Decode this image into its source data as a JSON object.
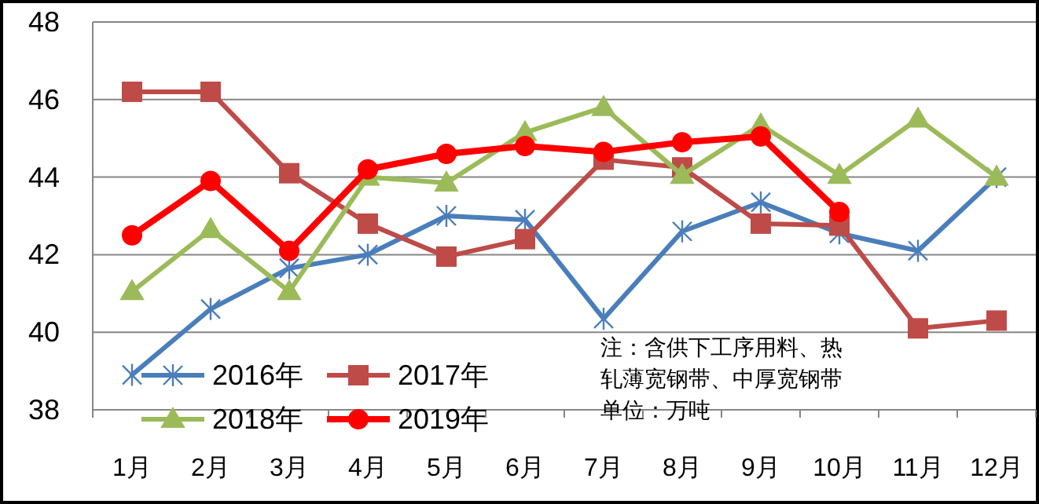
{
  "chart_data": {
    "type": "line",
    "categories": [
      "1月",
      "2月",
      "3月",
      "4月",
      "5月",
      "6月",
      "7月",
      "8月",
      "9月",
      "10月",
      "11月",
      "12月"
    ],
    "series": [
      {
        "name": "2016年",
        "color": "#4a7ebb",
        "marker": "cross",
        "values": [
          38.9,
          40.6,
          41.65,
          42.0,
          43.0,
          42.9,
          40.35,
          42.6,
          43.35,
          42.55,
          42.1,
          44.0
        ]
      },
      {
        "name": "2017年",
        "color": "#be4b48",
        "marker": "square",
        "values": [
          46.2,
          46.2,
          44.1,
          42.8,
          41.95,
          42.4,
          44.45,
          44.25,
          42.8,
          42.75,
          40.1,
          40.3
        ]
      },
      {
        "name": "2018年",
        "color": "#9bbb59",
        "marker": "triangle",
        "values": [
          41.05,
          42.65,
          41.05,
          44.0,
          43.85,
          45.15,
          45.8,
          44.05,
          45.35,
          44.05,
          45.5,
          44.0
        ]
      },
      {
        "name": "2019年",
        "color": "#ff0000",
        "marker": "circle",
        "values": [
          42.5,
          43.9,
          42.1,
          44.2,
          44.6,
          44.8,
          44.65,
          44.9,
          45.05,
          43.1,
          null,
          null
        ]
      }
    ],
    "ylim": [
      38,
      48
    ],
    "yticks": [
      38,
      40,
      42,
      44,
      46,
      48
    ],
    "grid": "y",
    "legend": "bottom left",
    "annotations": [
      "注：含供下工序用料、热",
      "轧薄宽钢带、中厚宽钢带",
      "单位：万吨"
    ]
  }
}
